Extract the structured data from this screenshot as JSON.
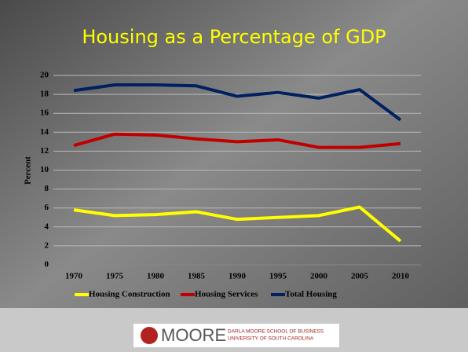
{
  "chart_data": {
    "type": "line",
    "title": "Housing as a Percentage of GDP",
    "y_label": "Percent",
    "categories": [
      "1970",
      "1975",
      "1980",
      "1985",
      "1990",
      "1995",
      "2000",
      "2005",
      "2010"
    ],
    "series": [
      {
        "name": "Housing Construction",
        "color": "#ffff00",
        "values": [
          5.8,
          5.2,
          5.3,
          5.6,
          4.8,
          5.0,
          5.2,
          6.1,
          2.5
        ]
      },
      {
        "name": "Housing Services",
        "color": "#c00000",
        "values": [
          12.6,
          13.8,
          13.7,
          13.3,
          13.0,
          13.2,
          12.4,
          12.4,
          12.8
        ]
      },
      {
        "name": "Total Housing",
        "color": "#002060",
        "values": [
          18.4,
          19.0,
          19.0,
          18.9,
          17.8,
          18.2,
          17.6,
          18.5,
          15.3
        ]
      }
    ],
    "ylim": [
      0,
      20
    ],
    "yticks": [
      0,
      2,
      4,
      6,
      8,
      10,
      12,
      14,
      16,
      18,
      20
    ],
    "grid": true,
    "legend": "bottom"
  },
  "logo": {
    "name": "MOORE",
    "line1": "DARLA MOORE SCHOOL OF BUSINESS",
    "line2": "UNIVERSITY OF SOUTH CAROLINA"
  }
}
